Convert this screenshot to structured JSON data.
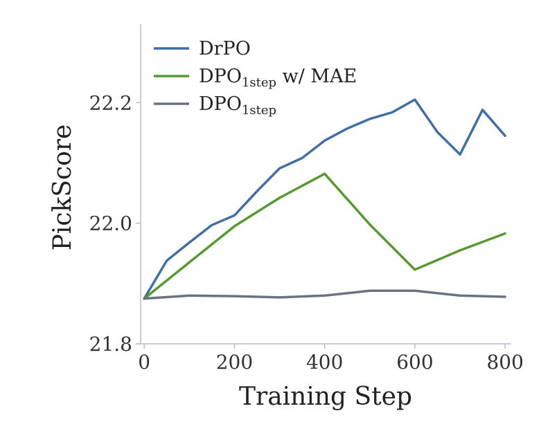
{
  "chart_data": {
    "type": "line",
    "title": "",
    "xlabel": "Training Step",
    "ylabel": "PickScore",
    "xlim": [
      -8,
      812
    ],
    "ylim": [
      21.8,
      22.33
    ],
    "xticks": [
      0,
      200,
      400,
      600,
      800
    ],
    "yticks": [
      21.8,
      22.0,
      22.2
    ],
    "xtick_labels": [
      "0",
      "200",
      "400",
      "600",
      "800"
    ],
    "ytick_labels": [
      "21.8",
      "22.0",
      "22.2"
    ],
    "grid": false,
    "legend_position": "top-left",
    "series": [
      {
        "name": "DrPO",
        "name_main": "DrPO",
        "name_sub": "",
        "name_suffix": "",
        "color": "#3f6fa6",
        "x": [
          0,
          50,
          100,
          150,
          200,
          250,
          300,
          350,
          400,
          450,
          500,
          550,
          600,
          650,
          700,
          750,
          800
        ],
        "y": [
          21.875,
          21.938,
          21.968,
          21.997,
          22.013,
          22.053,
          22.091,
          22.108,
          22.137,
          22.157,
          22.173,
          22.184,
          22.205,
          22.151,
          22.114,
          22.188,
          22.145
        ]
      },
      {
        "name": "DPO1step w/ MAE",
        "name_main": "DPO",
        "name_sub": "1step",
        "name_suffix": " w/ MAE",
        "color": "#559a2e",
        "x": [
          0,
          100,
          200,
          300,
          400,
          500,
          600,
          700,
          800
        ],
        "y": [
          21.875,
          21.935,
          21.995,
          22.042,
          22.082,
          21.998,
          21.923,
          21.955,
          21.983
        ]
      },
      {
        "name": "DPO1step",
        "name_main": "DPO",
        "name_sub": "1step",
        "name_suffix": "",
        "color": "#6b7280",
        "x": [
          0,
          100,
          200,
          300,
          400,
          500,
          600,
          700,
          800
        ],
        "y": [
          21.875,
          21.88,
          21.879,
          21.877,
          21.88,
          21.888,
          21.888,
          21.88,
          21.878
        ]
      }
    ]
  }
}
